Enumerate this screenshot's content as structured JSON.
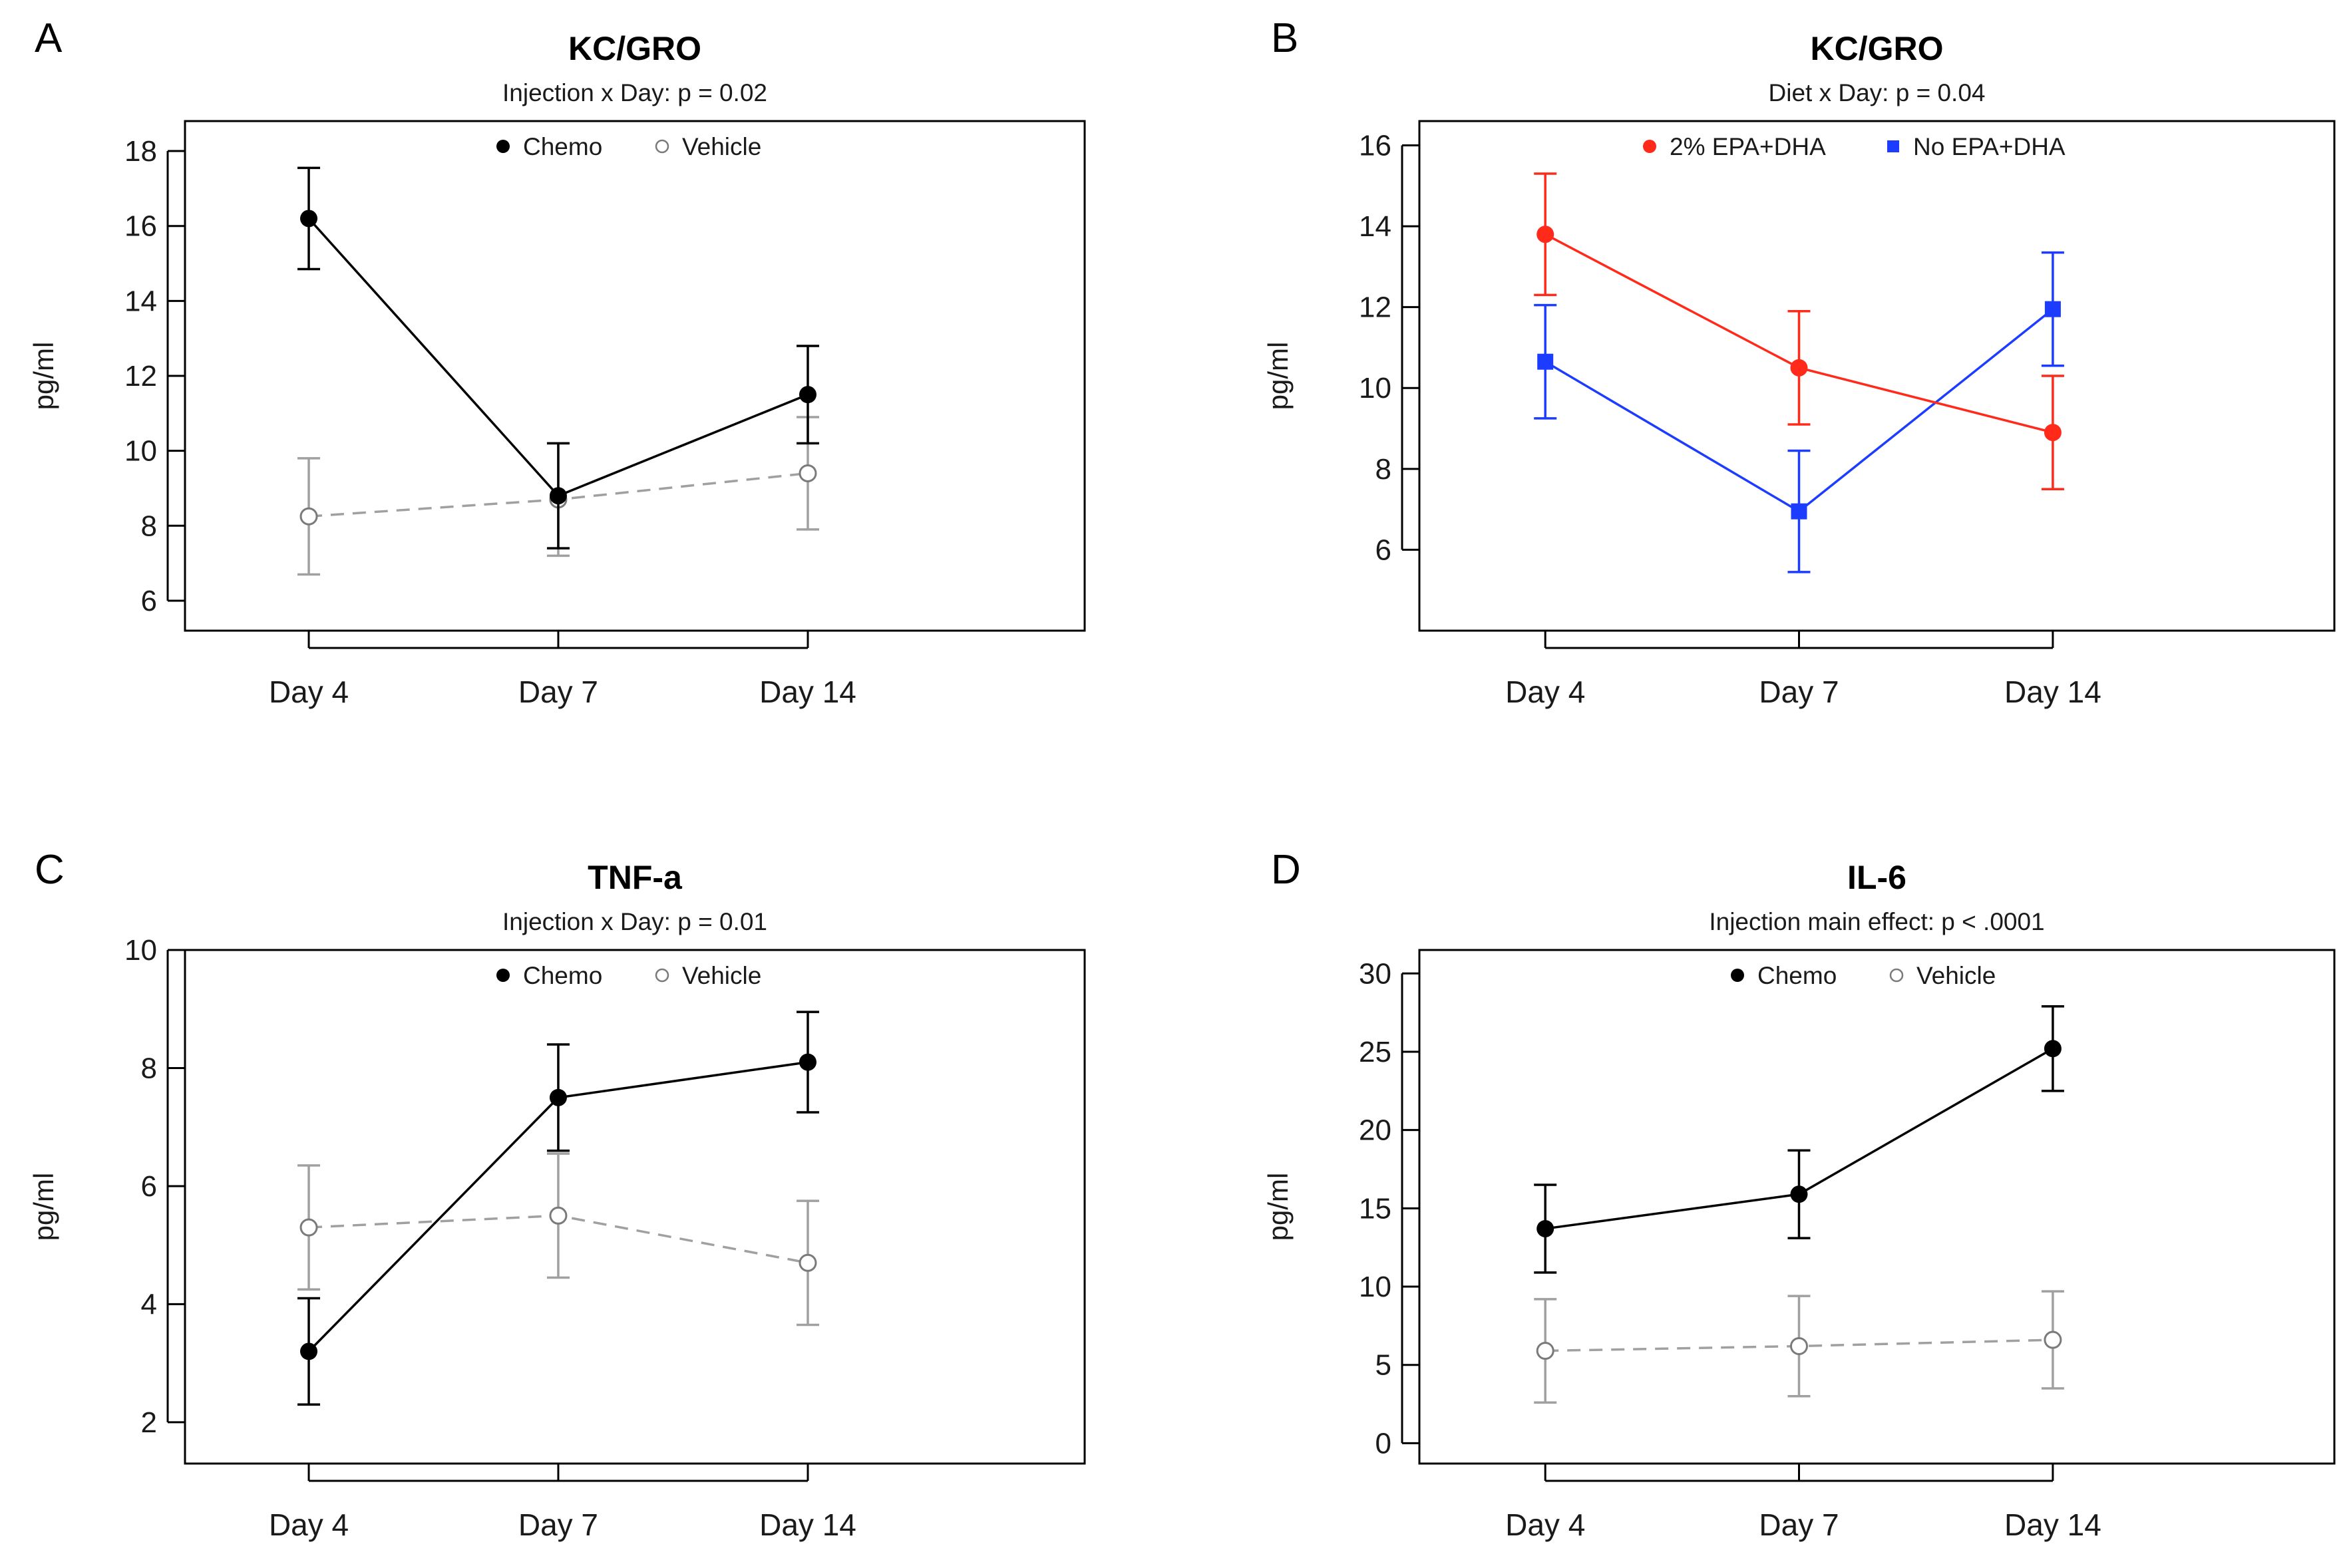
{
  "figure": {
    "panels": [
      {
        "letter": "A"
      },
      {
        "letter": "B"
      },
      {
        "letter": "C"
      },
      {
        "letter": "D"
      }
    ]
  },
  "chart_data": [
    {
      "panel": "A",
      "type": "line",
      "title": "KC/GRO",
      "subtitle": "Injection x Day: p = 0.02",
      "xlabel": "",
      "ylabel": "pg/ml",
      "categories": [
        "Day 4",
        "Day 7",
        "Day 14"
      ],
      "ylim": [
        5.2,
        18.8
      ],
      "yticks": [
        6,
        8,
        10,
        12,
        14,
        16,
        18
      ],
      "legend": {
        "position": "top-center"
      },
      "series": [
        {
          "name": "Chemo",
          "color": "#000000",
          "marker": "filled-circle",
          "line": "solid",
          "values": [
            16.2,
            8.8,
            11.5
          ],
          "err": [
            1.35,
            1.4,
            1.3
          ]
        },
        {
          "name": "Vehicle",
          "color": "#a0a0a0",
          "marker": "open-circle",
          "line": "dashed",
          "values": [
            8.25,
            8.7,
            9.4
          ],
          "err": [
            1.55,
            1.5,
            1.5
          ]
        }
      ]
    },
    {
      "panel": "B",
      "type": "line",
      "title": "KC/GRO",
      "subtitle": "Diet x Day: p = 0.04",
      "xlabel": "",
      "ylabel": "pg/ml",
      "categories": [
        "Day 4",
        "Day 7",
        "Day 14"
      ],
      "ylim": [
        4.0,
        16.6
      ],
      "yticks": [
        6,
        8,
        10,
        12,
        14,
        16
      ],
      "legend": {
        "position": "top-center"
      },
      "series": [
        {
          "name": "2% EPA+DHA",
          "color": "#ff2a1a",
          "marker": "filled-circle",
          "line": "solid",
          "values": [
            13.8,
            10.5,
            8.9
          ],
          "err": [
            1.5,
            1.4,
            1.4
          ]
        },
        {
          "name": "No EPA+DHA",
          "color": "#1c3cff",
          "marker": "filled-square",
          "line": "solid",
          "values": [
            10.65,
            6.95,
            11.95
          ],
          "err": [
            1.4,
            1.5,
            1.4
          ]
        }
      ]
    },
    {
      "panel": "C",
      "type": "line",
      "title": "TNF-a",
      "subtitle": "Injection x Day: p = 0.01",
      "xlabel": "",
      "ylabel": "pg/ml",
      "categories": [
        "Day 4",
        "Day 7",
        "Day 14"
      ],
      "ylim": [
        1.3,
        10.0
      ],
      "yticks": [
        2,
        4,
        6,
        8,
        10
      ],
      "legend": {
        "position": "top-center"
      },
      "series": [
        {
          "name": "Chemo",
          "color": "#000000",
          "marker": "filled-circle",
          "line": "solid",
          "values": [
            3.2,
            7.5,
            8.1
          ],
          "err": [
            0.9,
            0.9,
            0.85
          ]
        },
        {
          "name": "Vehicle",
          "color": "#a0a0a0",
          "marker": "open-circle",
          "line": "dashed",
          "values": [
            5.3,
            5.5,
            4.7
          ],
          "err": [
            1.05,
            1.05,
            1.05
          ]
        }
      ]
    },
    {
      "panel": "D",
      "type": "line",
      "title": "IL-6",
      "subtitle": "Injection main effect: p < .0001",
      "xlabel": "",
      "ylabel": "pg/ml",
      "categories": [
        "Day 4",
        "Day 7",
        "Day 14"
      ],
      "ylim": [
        -1.3,
        31.5
      ],
      "yticks": [
        0,
        5,
        10,
        15,
        20,
        25,
        30
      ],
      "legend": {
        "position": "top-center"
      },
      "series": [
        {
          "name": "Chemo",
          "color": "#000000",
          "marker": "filled-circle",
          "line": "solid",
          "values": [
            13.7,
            15.9,
            25.2
          ],
          "err": [
            2.8,
            2.8,
            2.7
          ]
        },
        {
          "name": "Vehicle",
          "color": "#a0a0a0",
          "marker": "open-circle",
          "line": "dashed",
          "values": [
            5.9,
            6.2,
            6.6
          ],
          "err": [
            3.3,
            3.2,
            3.1
          ]
        }
      ]
    }
  ]
}
